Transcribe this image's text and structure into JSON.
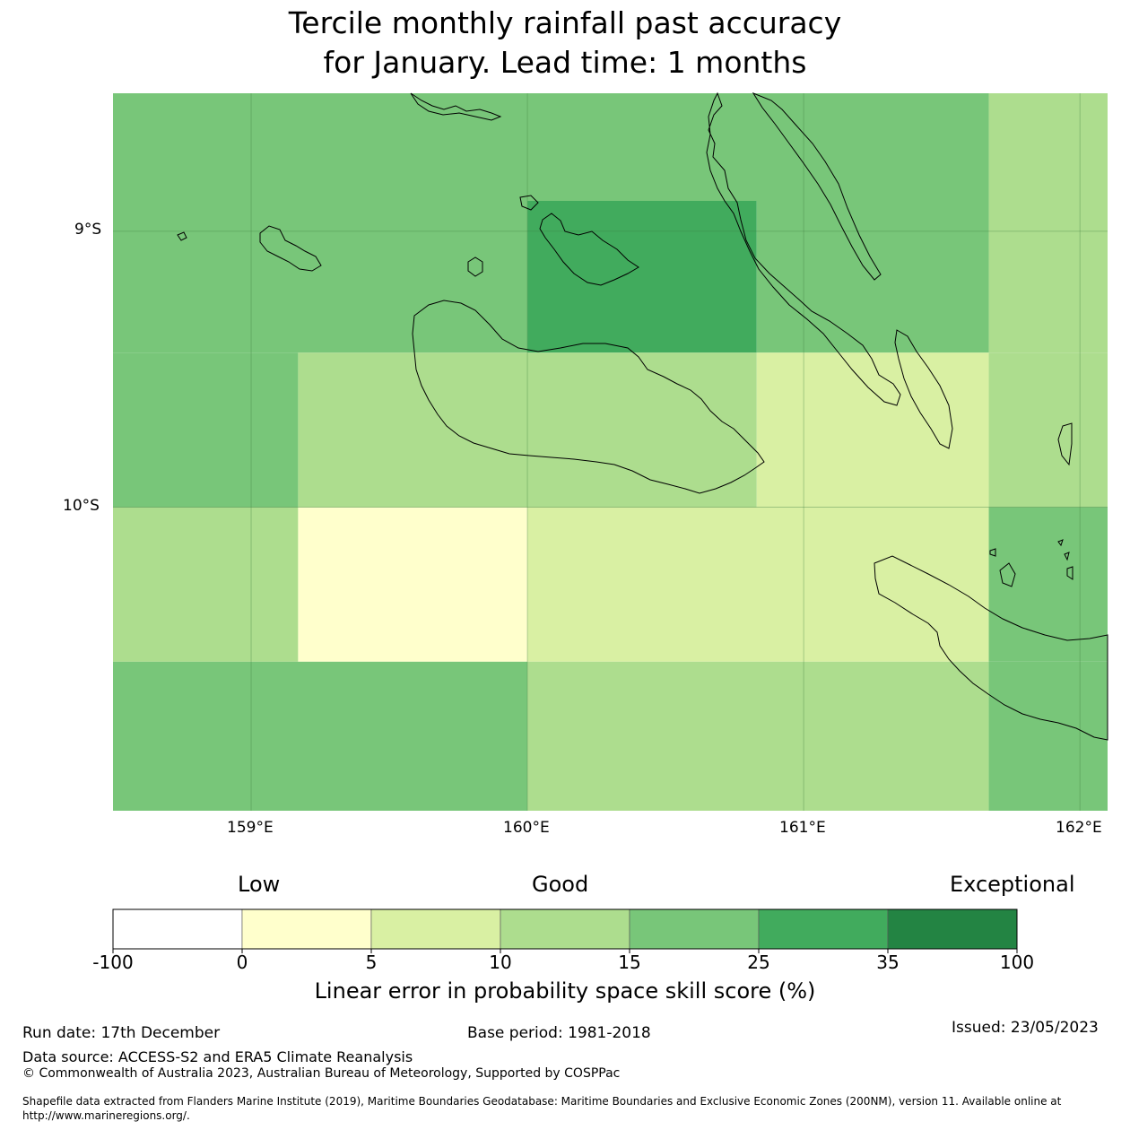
{
  "title": {
    "line1": "Tercile monthly rainfall past accuracy",
    "line2": "for January. Lead time: 1 months"
  },
  "map": {
    "lat_labels": [
      "9°S",
      "10°S"
    ],
    "lon_labels": [
      "159°E",
      "160°E",
      "161°E",
      "162°E"
    ],
    "extent": {
      "lon_min": 158.5,
      "lon_max": 162.1,
      "lat_max": -8.5,
      "lat_min": -11.1
    },
    "cells": [
      {
        "lon0": 158.5,
        "lon1": 161.67,
        "lat0": -8.5,
        "lat1": -8.89,
        "cls": 4
      },
      {
        "lon0": 161.67,
        "lon1": 162.1,
        "lat0": -8.5,
        "lat1": -8.89,
        "cls": 3
      },
      {
        "lon0": 158.5,
        "lon1": 160.0,
        "lat0": -8.89,
        "lat1": -9.44,
        "cls": 4
      },
      {
        "lon0": 160.0,
        "lon1": 160.83,
        "lat0": -8.89,
        "lat1": -9.44,
        "cls": 5
      },
      {
        "lon0": 160.83,
        "lon1": 161.67,
        "lat0": -8.89,
        "lat1": -9.44,
        "cls": 4
      },
      {
        "lon0": 161.67,
        "lon1": 162.1,
        "lat0": -8.89,
        "lat1": -9.44,
        "cls": 3
      },
      {
        "lon0": 158.5,
        "lon1": 159.17,
        "lat0": -9.44,
        "lat1": -10.0,
        "cls": 4
      },
      {
        "lon0": 159.17,
        "lon1": 160.83,
        "lat0": -9.44,
        "lat1": -10.0,
        "cls": 3
      },
      {
        "lon0": 160.83,
        "lon1": 161.67,
        "lat0": -9.44,
        "lat1": -10.0,
        "cls": 2
      },
      {
        "lon0": 161.67,
        "lon1": 162.1,
        "lat0": -9.44,
        "lat1": -10.0,
        "cls": 3
      },
      {
        "lon0": 158.5,
        "lon1": 159.17,
        "lat0": -10.0,
        "lat1": -10.56,
        "cls": 3
      },
      {
        "lon0": 159.17,
        "lon1": 160.0,
        "lat0": -10.0,
        "lat1": -10.56,
        "cls": 1
      },
      {
        "lon0": 160.0,
        "lon1": 161.67,
        "lat0": -10.0,
        "lat1": -10.56,
        "cls": 2
      },
      {
        "lon0": 161.67,
        "lon1": 162.1,
        "lat0": -10.0,
        "lat1": -10.56,
        "cls": 4
      },
      {
        "lon0": 158.5,
        "lon1": 160.0,
        "lat0": -10.56,
        "lat1": -11.1,
        "cls": 4
      },
      {
        "lon0": 160.0,
        "lon1": 161.67,
        "lat0": -10.56,
        "lat1": -11.1,
        "cls": 3
      },
      {
        "lon0": 161.67,
        "lon1": 162.1,
        "lat0": -10.56,
        "lat1": -11.1,
        "cls": 4
      }
    ]
  },
  "colorbar": {
    "category_low": "Low",
    "category_good": "Good",
    "category_exceptional": "Exceptional",
    "colors": [
      "#ffffff",
      "#ffffcc",
      "#d9f0a3",
      "#addd8e",
      "#78c679",
      "#41ab5d",
      "#238443"
    ],
    "ticks": [
      "-100",
      "0",
      "5",
      "10",
      "15",
      "25",
      "35",
      "100"
    ],
    "label": "Linear error in probability space skill score (%)"
  },
  "footer": {
    "run_date": "Run date: 17th December",
    "base_period": "Base period: 1981-2018",
    "issued": "Issued: 23/05/2023",
    "data_source": "Data source: ACCESS-S2 and ERA5 Climate Reanalysis",
    "copyright": "© Commonwealth of Australia 2023, Australian Bureau of Meteorology, Supported by COSPPac",
    "shapefile_line1": "Shapefile data extracted from Flanders Marine Institute (2019), Maritime Boundaries Geodatabase: Maritime Boundaries and Exclusive Economic Zones (200NM), version 11. Available online at",
    "shapefile_line2": "http://www.marineregions.org/."
  }
}
